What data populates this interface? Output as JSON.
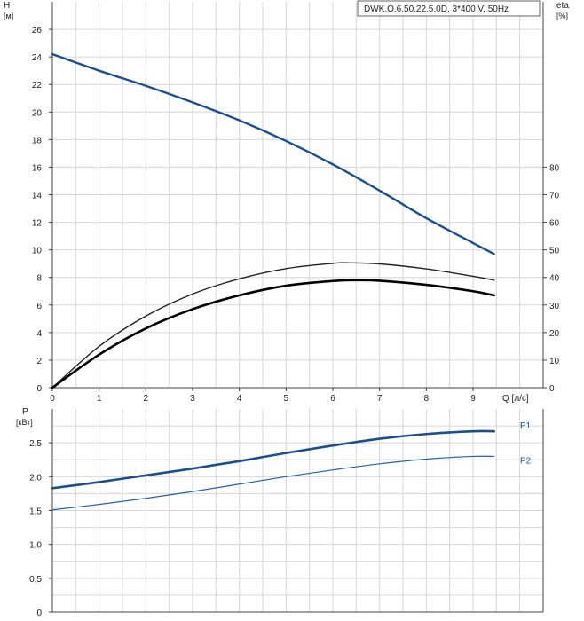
{
  "header": {
    "title": "DWK.O.6.50.22.5.0D, 3*400 V, 50Hz"
  },
  "chart_data": [
    {
      "type": "line",
      "left_axis": {
        "name": "H",
        "unit": "[м]",
        "ticks": [
          "0",
          "2",
          "4",
          "6",
          "8",
          "10",
          "12",
          "14",
          "16",
          "18",
          "20",
          "22",
          "24",
          "26"
        ],
        "ylim": [
          0,
          28
        ]
      },
      "right_axis": {
        "name": "eta",
        "unit": "[%]",
        "ticks": [
          "0",
          "10",
          "20",
          "30",
          "40",
          "50",
          "60",
          "70",
          "80"
        ],
        "ylim": [
          0,
          140
        ]
      },
      "x_axis": {
        "unit": "Q [л/с]",
        "ticks": [
          "0",
          "1",
          "2",
          "3",
          "4",
          "5",
          "6",
          "7",
          "8",
          "9"
        ],
        "xlim": [
          0,
          10.5
        ]
      },
      "grid": true,
      "series": [
        {
          "color": "#1f4e8c",
          "axis": "left",
          "x": [
            0,
            1,
            2,
            3,
            4,
            5,
            6,
            7,
            8,
            9,
            9.45
          ],
          "y": [
            24.2,
            23.0,
            21.9,
            20.7,
            19.4,
            17.9,
            16.2,
            14.3,
            12.3,
            10.5,
            9.7
          ]
        },
        {
          "color": "#222222",
          "axis": "right",
          "x": [
            0,
            1,
            2,
            3,
            4,
            5,
            6,
            6.3,
            7,
            8,
            9,
            9.45
          ],
          "y": [
            0,
            15,
            26,
            34,
            39.5,
            43.2,
            45.1,
            45.3,
            44.9,
            43.1,
            40.4,
            39
          ]
        },
        {
          "color": "#000000",
          "axis": "right",
          "x": [
            0,
            1,
            2,
            3,
            4,
            5,
            6,
            6.5,
            7,
            8,
            9,
            9.45
          ],
          "y": [
            0,
            12,
            21.5,
            28.5,
            33.5,
            37,
            38.7,
            39,
            38.8,
            37.3,
            35,
            33.5
          ]
        }
      ]
    },
    {
      "type": "line",
      "y_axis": {
        "name": "P",
        "unit": "[кВт]",
        "ticks": [
          "0",
          "0,5",
          "1,0",
          "1,5",
          "2,0",
          "2,5"
        ],
        "ylim": [
          0,
          3.0
        ]
      },
      "x_axis": {
        "xlim": [
          0,
          10.5
        ]
      },
      "grid": true,
      "series": [
        {
          "name": "P1",
          "color": "#1f4e8c",
          "x": [
            0,
            1,
            2,
            3,
            4,
            5,
            6,
            7,
            8,
            9,
            9.45
          ],
          "y": [
            1.83,
            1.92,
            2.02,
            2.12,
            2.23,
            2.35,
            2.46,
            2.56,
            2.63,
            2.67,
            2.67
          ]
        },
        {
          "name": "P2",
          "color": "#2b5f9e",
          "x": [
            0,
            1,
            2,
            3,
            4,
            5,
            6,
            7,
            8,
            9,
            9.45
          ],
          "y": [
            1.51,
            1.59,
            1.68,
            1.78,
            1.89,
            2.0,
            2.1,
            2.19,
            2.26,
            2.3,
            2.3
          ]
        }
      ]
    }
  ]
}
